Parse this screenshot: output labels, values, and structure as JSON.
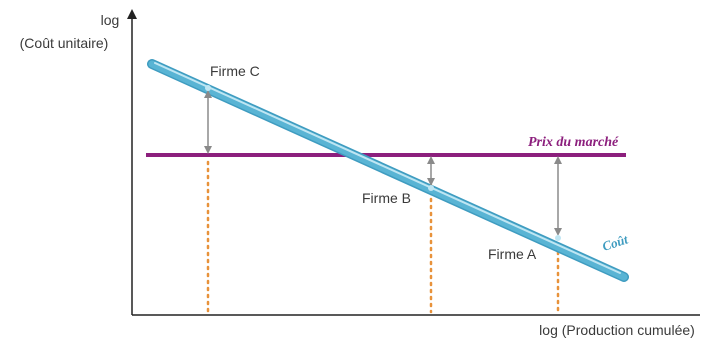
{
  "diagram": {
    "y_axis_label_line1": "log",
    "y_axis_label_line2": "(Coût unitaire)",
    "x_axis_label": "log (Production cumulée)",
    "price_label": "Prix du marché",
    "cost_label": "Coût",
    "firms": [
      {
        "label": "Firme C"
      },
      {
        "label": "Firme B"
      },
      {
        "label": "Firme A"
      }
    ],
    "colors": {
      "axis": "#222222",
      "cost_line": "#59b4d4",
      "cost_line_highlight": "#bfe6f3",
      "price_line": "#8c1f7d",
      "dotted": "#e8923a",
      "arrow": "#8a8a8a",
      "text": "#3a3a3a"
    }
  }
}
